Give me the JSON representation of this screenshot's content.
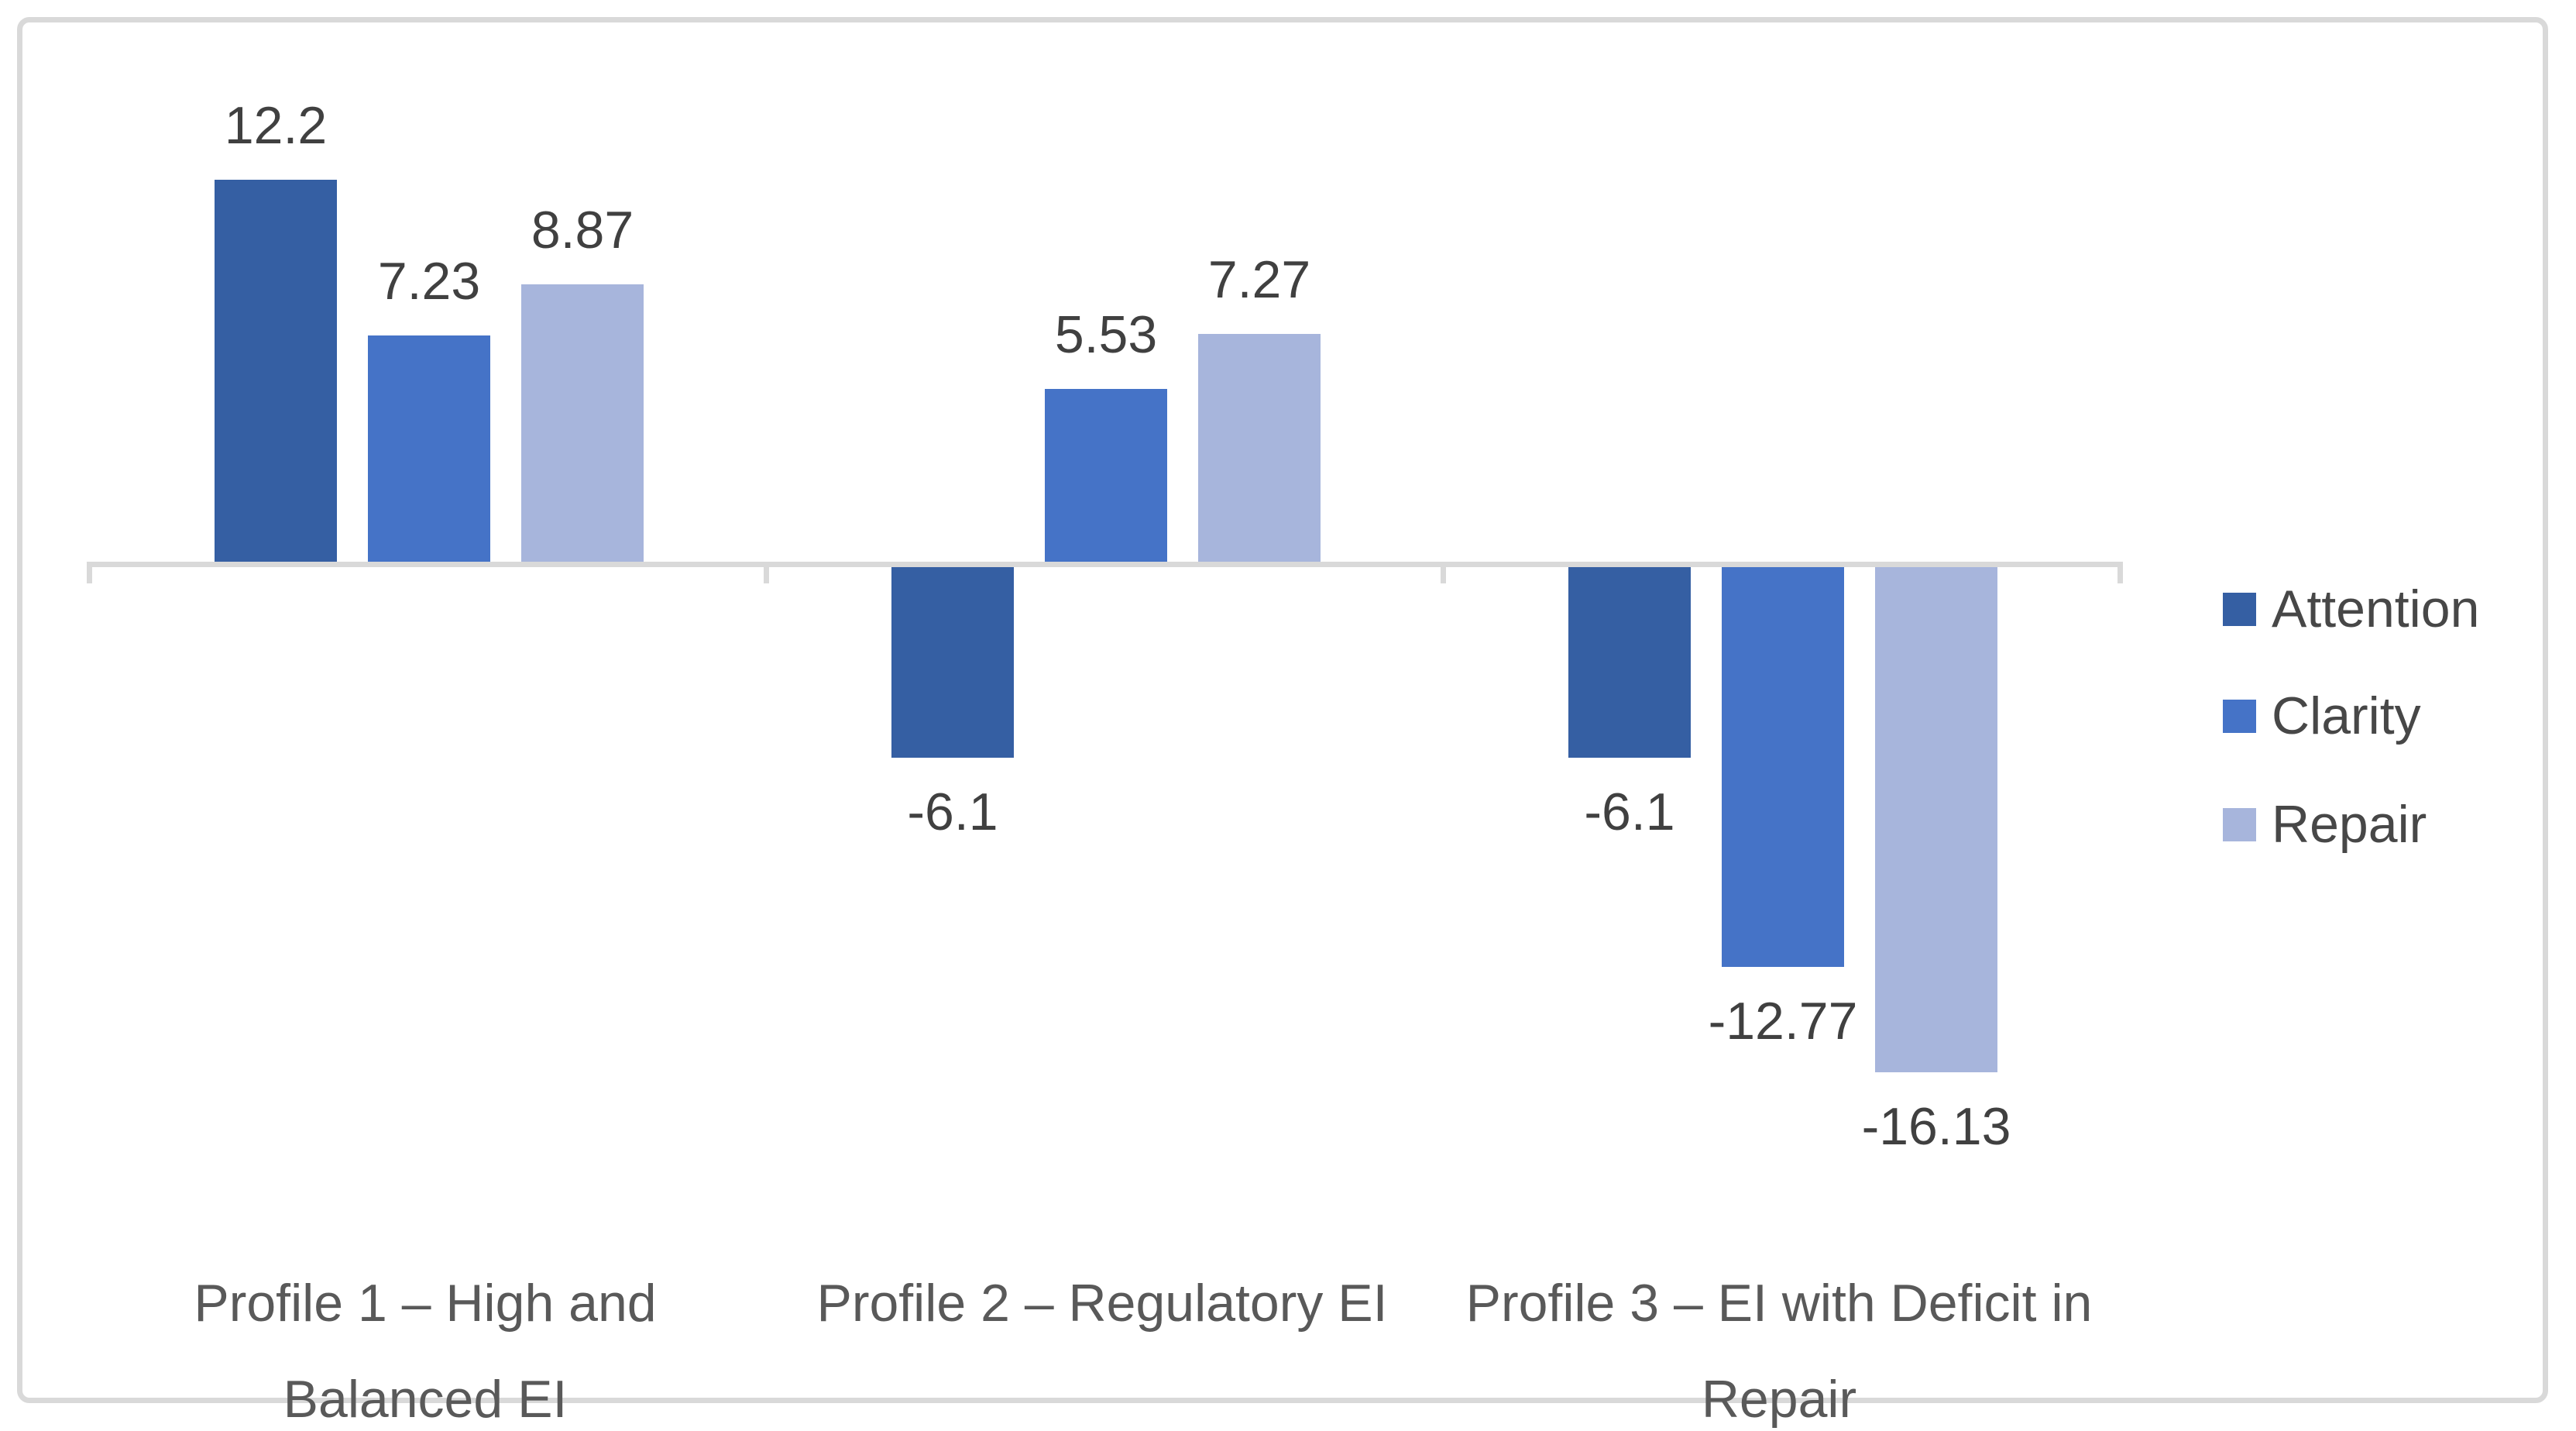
{
  "chart_data": {
    "type": "bar",
    "title": "",
    "xlabel": "",
    "ylabel": "",
    "categories": [
      "Profile 1 – High and Balanced EI",
      "Profile 2 – Regulatory EI",
      "Profile 3 – EI with Deficit in Repair"
    ],
    "series": [
      {
        "name": "Attention",
        "color": "#355FA3",
        "values": [
          12.2,
          -6.1,
          -6.1
        ],
        "labels": [
          "12.2",
          "-6.1",
          "-6.1"
        ]
      },
      {
        "name": "Clarity",
        "color": "#4573C7",
        "values": [
          7.23,
          5.53,
          -12.77
        ],
        "labels": [
          "7.23",
          "5.53",
          "-12.77"
        ]
      },
      {
        "name": "Repair",
        "color": "#A7B5DC",
        "values": [
          8.87,
          7.27,
          -16.13
        ],
        "labels": [
          "8.87",
          "7.27",
          "-16.13"
        ]
      }
    ],
    "ylim": [
      -16.13,
      12.2
    ],
    "grid": false,
    "legend_position": "right",
    "data_labels": true,
    "colors": {
      "axis": "#D9D9D9",
      "frame_border": "#D9D9D9",
      "value_label": "#404040",
      "category_label": "#595959",
      "legend_label": "#474747",
      "background": "#ffffff"
    }
  }
}
